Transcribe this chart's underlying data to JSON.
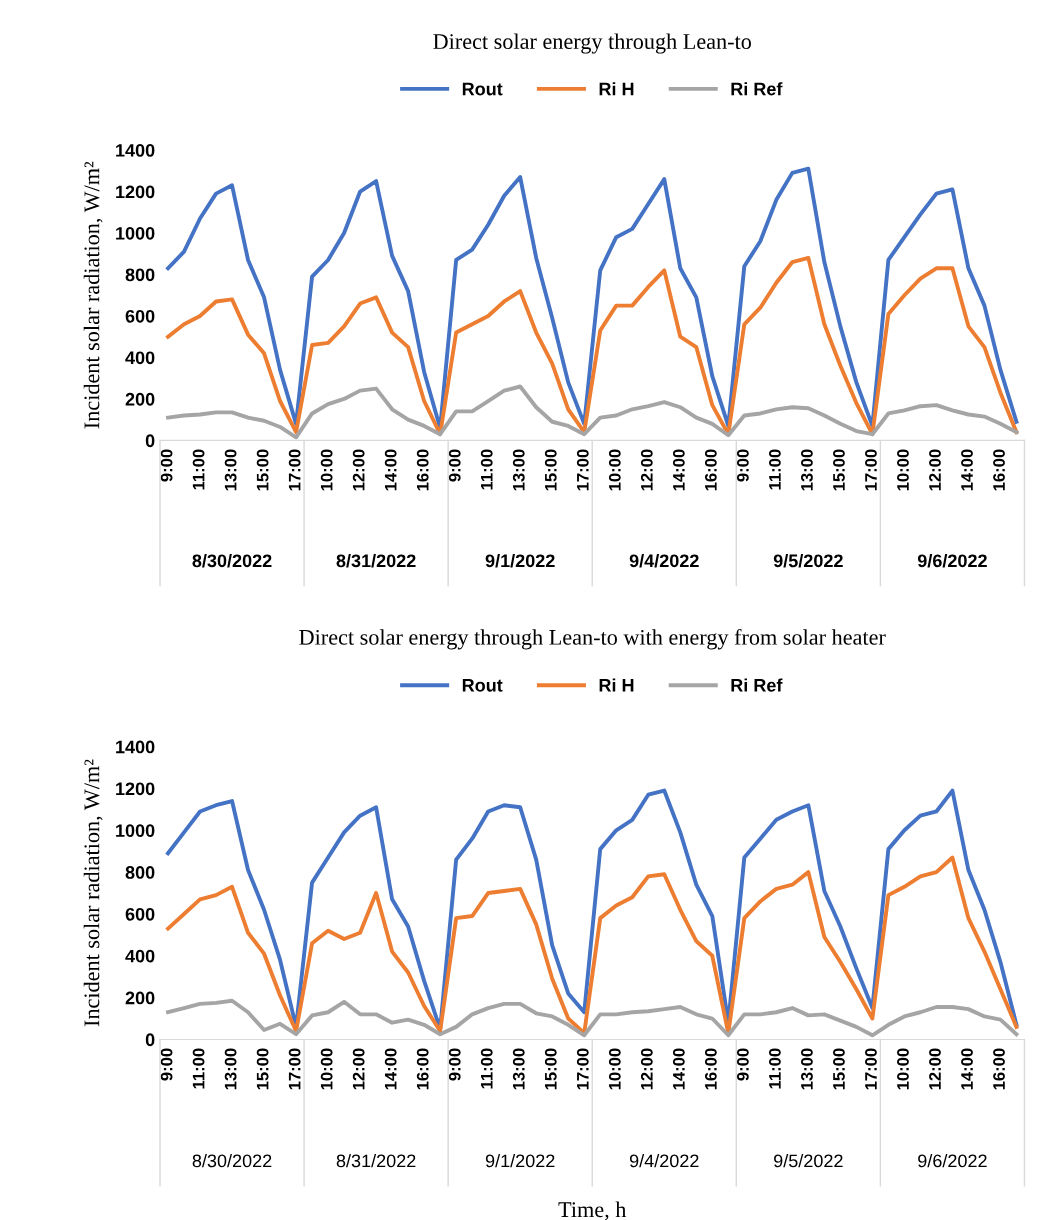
{
  "chart_data": [
    {
      "type": "line",
      "title": "Direct solar energy through Lean-to",
      "ylabel": "Incident solar radiation, W/m²",
      "categories": [
        "9:00",
        null,
        "11:00",
        null,
        "13:00",
        null,
        "15:00",
        null,
        "17:00",
        null,
        "10:00",
        null,
        "12:00",
        null,
        "14:00",
        null,
        "16:00",
        null,
        "9:00",
        null,
        "11:00",
        null,
        "13:00",
        null,
        "15:00",
        null,
        "17:00",
        null,
        "10:00",
        null,
        "12:00",
        null,
        "14:00",
        null,
        "16:00",
        null,
        "9:00",
        null,
        "11:00",
        null,
        "13:00",
        null,
        "15:00",
        null,
        "17:00",
        null,
        "10:00",
        null,
        "12:00",
        null,
        "14:00",
        null,
        "16:00",
        null
      ],
      "annotations": [
        "8/30/2022",
        "8/31/2022",
        "9/1/2022",
        "9/4/2022",
        "9/5/2022",
        "9/6/2022"
      ],
      "ylim": [
        0,
        1400
      ],
      "yticks": [
        0,
        200,
        400,
        600,
        800,
        1000,
        1200,
        1400
      ],
      "grid": false,
      "legend": "top",
      "marker": "none",
      "line_style": "solid",
      "series": [
        {
          "name": "Rout",
          "color": "#4472c4",
          "values": [
            830,
            910,
            1070,
            1190,
            1230,
            870,
            690,
            340,
            80,
            790,
            870,
            1000,
            1200,
            1250,
            890,
            720,
            330,
            60,
            870,
            920,
            1040,
            1180,
            1270,
            880,
            590,
            280,
            80,
            820,
            980,
            1020,
            1140,
            1260,
            830,
            690,
            310,
            70,
            840,
            960,
            1160,
            1290,
            1310,
            860,
            550,
            280,
            70,
            870,
            980,
            1090,
            1190,
            1210,
            830,
            650,
            340,
            90
          ]
        },
        {
          "name": "Ri H",
          "color": "#ed7d31",
          "values": [
            500,
            560,
            600,
            670,
            680,
            510,
            420,
            190,
            40,
            460,
            470,
            550,
            660,
            690,
            520,
            450,
            190,
            30,
            520,
            560,
            600,
            670,
            720,
            520,
            370,
            150,
            40,
            530,
            650,
            650,
            740,
            820,
            500,
            450,
            170,
            30,
            560,
            640,
            760,
            860,
            880,
            560,
            360,
            180,
            30,
            610,
            700,
            780,
            830,
            830,
            550,
            450,
            230,
            40
          ]
        },
        {
          "name": "Ri Ref",
          "color": "#a5a5a5",
          "values": [
            110,
            120,
            125,
            135,
            135,
            110,
            95,
            65,
            15,
            130,
            175,
            200,
            240,
            250,
            150,
            100,
            70,
            30,
            140,
            140,
            190,
            240,
            260,
            160,
            90,
            70,
            30,
            110,
            120,
            150,
            165,
            185,
            160,
            110,
            80,
            25,
            120,
            130,
            150,
            160,
            155,
            120,
            80,
            45,
            30,
            130,
            145,
            165,
            170,
            145,
            125,
            115,
            80,
            40
          ]
        }
      ]
    },
    {
      "type": "line",
      "title": "Direct solar energy through Lean-to with energy from solar heater",
      "ylabel": "Incident solar radiation, W/m²",
      "xlabel": "Time, h",
      "categories": [
        "9:00",
        null,
        "11:00",
        null,
        "13:00",
        null,
        "15:00",
        null,
        "17:00",
        null,
        "10:00",
        null,
        "12:00",
        null,
        "14:00",
        null,
        "16:00",
        null,
        "9:00",
        null,
        "11:00",
        null,
        "13:00",
        null,
        "15:00",
        null,
        "17:00",
        null,
        "10:00",
        null,
        "12:00",
        null,
        "14:00",
        null,
        "16:00",
        null,
        "9:00",
        null,
        "11:00",
        null,
        "13:00",
        null,
        "15:00",
        null,
        "17:00",
        null,
        "10:00",
        null,
        "12:00",
        null,
        "14:00",
        null,
        "16:00",
        null
      ],
      "annotations": [
        "8/30/2022",
        "8/31/2022",
        "9/1/2022",
        "9/4/2022",
        "9/5/2022",
        "9/6/2022"
      ],
      "ylim": [
        0,
        1400
      ],
      "yticks": [
        0,
        200,
        400,
        600,
        800,
        1000,
        1200,
        1400
      ],
      "grid": false,
      "legend": "top",
      "marker": "none",
      "line_style": "solid",
      "series": [
        {
          "name": "Rout",
          "color": "#4472c4",
          "values": [
            890,
            990,
            1090,
            1120,
            1140,
            810,
            620,
            380,
            60,
            750,
            870,
            990,
            1070,
            1110,
            670,
            540,
            280,
            50,
            860,
            960,
            1090,
            1120,
            1110,
            860,
            450,
            220,
            130,
            910,
            1000,
            1050,
            1170,
            1190,
            990,
            740,
            590,
            80,
            870,
            960,
            1050,
            1090,
            1120,
            710,
            540,
            340,
            150,
            910,
            1000,
            1070,
            1090,
            1190,
            810,
            620,
            370,
            70
          ]
        },
        {
          "name": "Ri H",
          "color": "#ed7d31",
          "values": [
            530,
            600,
            670,
            690,
            730,
            510,
            410,
            210,
            40,
            460,
            520,
            480,
            510,
            700,
            420,
            320,
            160,
            40,
            580,
            590,
            700,
            710,
            720,
            550,
            290,
            100,
            30,
            580,
            640,
            680,
            780,
            790,
            620,
            470,
            400,
            30,
            580,
            660,
            720,
            740,
            800,
            490,
            370,
            240,
            100,
            690,
            730,
            780,
            800,
            870,
            580,
            420,
            240,
            60
          ]
        },
        {
          "name": "Ri Ref",
          "color": "#a5a5a5",
          "values": [
            130,
            150,
            170,
            175,
            185,
            130,
            45,
            75,
            25,
            115,
            130,
            180,
            120,
            120,
            80,
            95,
            70,
            25,
            60,
            120,
            150,
            170,
            170,
            125,
            110,
            70,
            20,
            120,
            120,
            130,
            135,
            145,
            155,
            120,
            100,
            20,
            120,
            120,
            130,
            150,
            115,
            120,
            90,
            60,
            20,
            70,
            110,
            130,
            155,
            155,
            145,
            110,
            95,
            25
          ]
        }
      ]
    }
  ]
}
